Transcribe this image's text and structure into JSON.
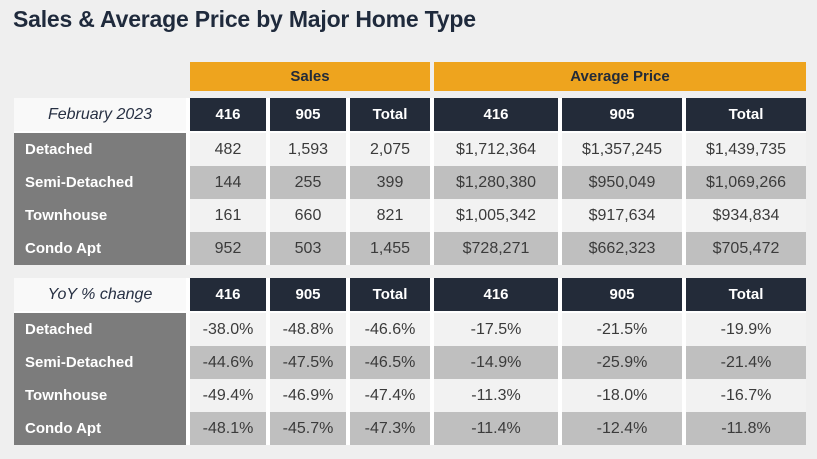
{
  "title": "Sales & Average Price by Major Home Type",
  "colors": {
    "accent_gold": "#EEA41E",
    "header_navy": "#232B39",
    "row_label_gray": "#7C7C7C",
    "row_light": "#F2F2F2",
    "row_shaded": "#BFBFBF",
    "page_bg": "#EFEFEF",
    "title_text": "#1F2A3C"
  },
  "table": {
    "group_headers": [
      {
        "label": "Sales"
      },
      {
        "label": "Average Price"
      }
    ],
    "sections": [
      {
        "label": "February 2023",
        "columns": [
          "416",
          "905",
          "Total",
          "416",
          "905",
          "Total"
        ],
        "rows": [
          {
            "label": "Detached",
            "values": [
              "482",
              "1,593",
              "2,075",
              "$1,712,364",
              "$1,357,245",
              "$1,439,735"
            ]
          },
          {
            "label": "Semi-Detached",
            "values": [
              "144",
              "255",
              "399",
              "$1,280,380",
              "$950,049",
              "$1,069,266"
            ]
          },
          {
            "label": "Townhouse",
            "values": [
              "161",
              "660",
              "821",
              "$1,005,342",
              "$917,634",
              "$934,834"
            ]
          },
          {
            "label": "Condo Apt",
            "values": [
              "952",
              "503",
              "1,455",
              "$728,271",
              "$662,323",
              "$705,472"
            ]
          }
        ]
      },
      {
        "label": "YoY % change",
        "columns": [
          "416",
          "905",
          "Total",
          "416",
          "905",
          "Total"
        ],
        "rows": [
          {
            "label": "Detached",
            "values": [
              "-38.0%",
              "-48.8%",
              "-46.6%",
              "-17.5%",
              "-21.5%",
              "-19.9%"
            ]
          },
          {
            "label": "Semi-Detached",
            "values": [
              "-44.6%",
              "-47.5%",
              "-46.5%",
              "-14.9%",
              "-25.9%",
              "-21.4%"
            ]
          },
          {
            "label": "Townhouse",
            "values": [
              "-49.4%",
              "-46.9%",
              "-47.4%",
              "-11.3%",
              "-18.0%",
              "-16.7%"
            ]
          },
          {
            "label": "Condo Apt",
            "values": [
              "-48.1%",
              "-45.7%",
              "-47.3%",
              "-11.4%",
              "-12.4%",
              "-11.8%"
            ]
          }
        ]
      }
    ]
  },
  "chart_data": {
    "type": "table",
    "title": "Sales & Average Price by Major Home Type",
    "period": "February 2023",
    "column_groups": [
      {
        "name": "Sales",
        "columns": [
          "416",
          "905",
          "Total"
        ]
      },
      {
        "name": "Average Price",
        "columns": [
          "416",
          "905",
          "Total"
        ]
      }
    ],
    "rows": [
      {
        "home_type": "Detached",
        "sales": {
          "c416": 482,
          "c905": 1593,
          "total": 2075
        },
        "average_price": {
          "c416": 1712364,
          "c905": 1357245,
          "total": 1439735
        },
        "yoy_pct_change": {
          "sales_416": -38.0,
          "sales_905": -48.8,
          "sales_total": -46.6,
          "price_416": -17.5,
          "price_905": -21.5,
          "price_total": -19.9
        }
      },
      {
        "home_type": "Semi-Detached",
        "sales": {
          "c416": 144,
          "c905": 255,
          "total": 399
        },
        "average_price": {
          "c416": 1280380,
          "c905": 950049,
          "total": 1069266
        },
        "yoy_pct_change": {
          "sales_416": -44.6,
          "sales_905": -47.5,
          "sales_total": -46.5,
          "price_416": -14.9,
          "price_905": -25.9,
          "price_total": -21.4
        }
      },
      {
        "home_type": "Townhouse",
        "sales": {
          "c416": 161,
          "c905": 660,
          "total": 821
        },
        "average_price": {
          "c416": 1005342,
          "c905": 917634,
          "total": 934834
        },
        "yoy_pct_change": {
          "sales_416": -49.4,
          "sales_905": -46.9,
          "sales_total": -47.4,
          "price_416": -11.3,
          "price_905": -18.0,
          "price_total": -16.7
        }
      },
      {
        "home_type": "Condo Apt",
        "sales": {
          "c416": 952,
          "c905": 503,
          "total": 1455
        },
        "average_price": {
          "c416": 728271,
          "c905": 662323,
          "total": 705472
        },
        "yoy_pct_change": {
          "sales_416": -48.1,
          "sales_905": -45.7,
          "sales_total": -47.3,
          "price_416": -11.4,
          "price_905": -12.4,
          "price_total": -11.8
        }
      }
    ]
  }
}
